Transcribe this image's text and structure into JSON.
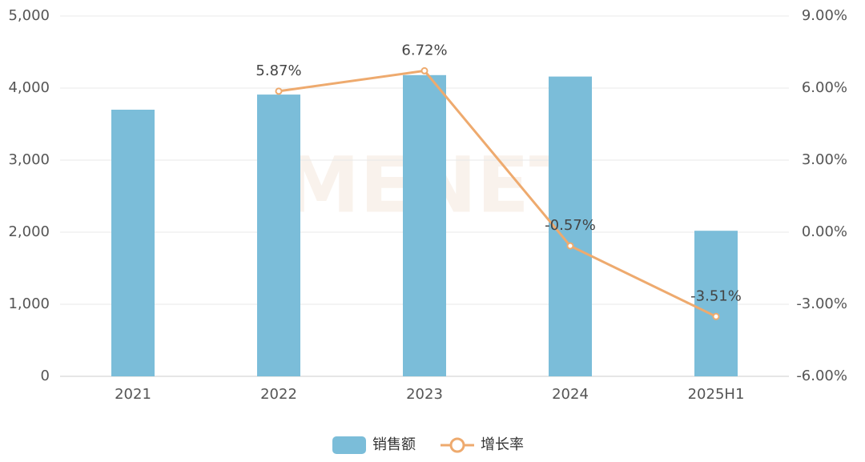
{
  "chart_data": {
    "type": "bar-line",
    "watermark": "MENET",
    "categories": [
      "2021",
      "2022",
      "2023",
      "2024",
      "2025H1"
    ],
    "series": [
      {
        "name": "销售额",
        "type": "bar",
        "color": "#7bbdd9",
        "values": [
          3700,
          3910,
          4180,
          4160,
          2020
        ]
      },
      {
        "name": "增长率",
        "type": "line",
        "axis": "y2",
        "color": "#eeaa6e",
        "values": [
          null,
          5.87,
          6.72,
          -0.57,
          -3.51
        ],
        "value_labels": [
          null,
          "5.87%",
          "6.72%",
          "-0.57%",
          "-3.51%"
        ]
      }
    ],
    "ylim": [
      0,
      5000
    ],
    "yticks": [
      0,
      {
        "value": 1000,
        "label": "1,000"
      },
      {
        "value": 2000,
        "label": "2,000"
      },
      {
        "value": 3000,
        "label": "3,000"
      },
      {
        "value": 4000,
        "label": "4,000"
      },
      {
        "value": 5000,
        "label": "5,000"
      }
    ],
    "y2lim": [
      -6,
      9
    ],
    "y2ticks": [
      {
        "value": -6,
        "label": "-6.00%"
      },
      {
        "value": -3,
        "label": "-3.00%"
      },
      {
        "value": 0,
        "label": "0.00%"
      },
      {
        "value": 3,
        "label": "3.00%"
      },
      {
        "value": 6,
        "label": "6.00%"
      },
      {
        "value": 9,
        "label": "9.00%"
      }
    ],
    "grid": true,
    "legend": "bottom"
  }
}
